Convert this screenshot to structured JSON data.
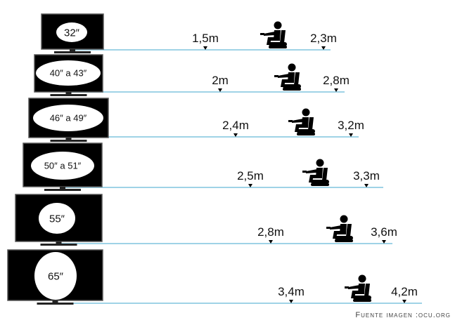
{
  "rows": [
    {
      "size": "32″",
      "min": "1,5m",
      "max": "2,3m"
    },
    {
      "size": "40″ a 43″",
      "min": "2m",
      "max": "2,8m"
    },
    {
      "size": "46″ a 49″",
      "min": "2,4m",
      "max": "3,2m"
    },
    {
      "size": "50″ a 51″",
      "min": "2,5m",
      "max": "3,3m"
    },
    {
      "size": "55″",
      "min": "2,8m",
      "max": "3,6m"
    },
    {
      "size": "65″",
      "min": "3,4m",
      "max": "4,2m"
    }
  ],
  "credit": "Fuente imagen :ocu.org",
  "colors": {
    "line": "#9fd3e6",
    "tv": "#000000",
    "screen_label_bg": "#ffffff"
  }
}
